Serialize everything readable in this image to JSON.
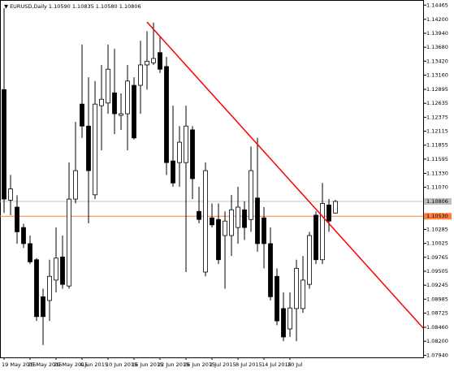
{
  "chart_data": {
    "type": "candlestick",
    "title": "▼ EURUSD,Daily 1.10590 1.10835 1.10580 1.10806",
    "categories": [
      "19 May 2015",
      null,
      null,
      null,
      "25 May 2015",
      null,
      null,
      null,
      "29 May 2015",
      null,
      null,
      null,
      "4 Jun 2015",
      null,
      null,
      null,
      "10 Jun 2015",
      null,
      null,
      null,
      "16 Jun 2015",
      null,
      null,
      null,
      "22 Jun 2015",
      null,
      null,
      null,
      "26 Jun 2015",
      null,
      null,
      null,
      "2 Jul 2015",
      null,
      null,
      null,
      "8 Jul 2015",
      null,
      null,
      null,
      "14 Jul 2015",
      null,
      null,
      null,
      "20 Jul",
      null,
      null,
      null,
      null,
      null,
      null,
      null
    ],
    "open": [
      1.1289,
      1.1083,
      1.107,
      1.1032,
      1.1002,
      1.0972,
      1.0903,
      1.0896,
      1.0934,
      1.0977,
      1.0923,
      1.1085,
      1.1262,
      1.1221,
      1.1093,
      1.1259,
      1.1264,
      1.1283,
      1.1241,
      1.1244,
      1.1297,
      1.1297,
      1.1335,
      1.1339,
      1.1358,
      1.1332,
      1.1156,
      1.1153,
      1.1153,
      1.1214,
      1.1062,
      1.0949,
      1.105,
      1.1047,
      1.1017,
      1.1017,
      1.1032,
      1.1065,
      1.1047,
      1.1087,
      1.105,
      1.1002,
      1.0941,
      1.0881,
      1.0843,
      1.0881,
      1.0881,
      1.0926,
      1.1055,
      1.0972,
      1.1074,
      1.1059
    ],
    "high": [
      1.1441,
      1.113,
      1.1092,
      1.1039,
      1.1017,
      1.0975,
      1.0918,
      1.0972,
      1.1032,
      1.1017,
      1.1153,
      1.1229,
      1.1373,
      1.1312,
      1.1305,
      1.1335,
      1.1373,
      1.1365,
      1.1282,
      1.1335,
      1.1312,
      1.138,
      1.1398,
      1.1414,
      1.1388,
      1.135,
      1.1259,
      1.1221,
      1.1259,
      1.1221,
      1.1108,
      1.1153,
      1.1077,
      1.1077,
      1.1062,
      1.1093,
      1.1108,
      1.1081,
      1.1183,
      1.1199,
      1.107,
      1.1032,
      1.0956,
      1.0911,
      1.0911,
      1.0972,
      1.0979,
      1.1024,
      1.1062,
      1.1115,
      1.1085,
      1.10835
    ],
    "low": [
      1.1059,
      1.1055,
      1.1002,
      1.0994,
      1.0964,
      1.0858,
      1.0813,
      1.0858,
      1.0911,
      1.0918,
      1.0918,
      1.1077,
      1.1199,
      1.104,
      1.1085,
      1.1176,
      1.1244,
      1.1206,
      1.1214,
      1.1176,
      1.1196,
      1.1244,
      1.1289,
      1.1335,
      1.132,
      1.113,
      1.1108,
      1.1108,
      1.0949,
      1.1085,
      1.104,
      1.0941,
      1.1032,
      1.0964,
      1.0918,
      1.0979,
      1.1002,
      1.1009,
      1.1024,
      1.0987,
      1.0956,
      1.0896,
      1.085,
      1.082,
      1.0828,
      1.082,
      1.0873,
      1.0918,
      1.0964,
      1.0964,
      1.1024,
      1.1058
    ],
    "close": [
      1.1085,
      1.1104,
      1.1024,
      1.1002,
      1.0968,
      1.0866,
      1.0866,
      1.0941,
      1.0975,
      1.0926,
      1.1085,
      1.1138,
      1.1221,
      1.1138,
      1.1262,
      1.1271,
      1.1327,
      1.1244,
      1.1244,
      1.1305,
      1.1199,
      1.1335,
      1.1342,
      1.1347,
      1.1327,
      1.1153,
      1.1115,
      1.1191,
      1.1221,
      1.1123,
      1.1047,
      1.1138,
      1.1037,
      1.0972,
      1.1044,
      1.1065,
      1.107,
      1.1032,
      1.1138,
      1.1002,
      1.1002,
      1.0903,
      1.0858,
      1.0828,
      1.0882,
      1.0956,
      1.0934,
      1.1017,
      1.0972,
      1.1077,
      1.1044,
      1.10806
    ],
    "up_color": "#ffffff",
    "down_color": "#000000",
    "ylim": [
      1.079,
      1.1456
    ],
    "yticks": [
      {
        "value": 1.14465,
        "label": "1.14465"
      },
      {
        "value": 1.142,
        "label": "1.14200"
      },
      {
        "value": 1.1394,
        "label": "1.13940"
      },
      {
        "value": 1.1368,
        "label": "1.13680"
      },
      {
        "value": 1.1342,
        "label": "1.13420"
      },
      {
        "value": 1.1316,
        "label": "1.13160"
      },
      {
        "value": 1.12895,
        "label": "1.12895"
      },
      {
        "value": 1.12635,
        "label": "1.12635"
      },
      {
        "value": 1.12375,
        "label": "1.12375"
      },
      {
        "value": 1.12115,
        "label": "1.12115"
      },
      {
        "value": 1.11855,
        "label": "1.11855"
      },
      {
        "value": 1.11595,
        "label": "1.11595"
      },
      {
        "value": 1.1133,
        "label": "1.11330"
      },
      {
        "value": 1.1107,
        "label": "1.11070"
      },
      {
        "value": 1.10285,
        "label": "1.10285"
      },
      {
        "value": 1.10025,
        "label": "1.10025"
      },
      {
        "value": 1.09765,
        "label": "1.09765"
      },
      {
        "value": 1.09505,
        "label": "1.09505"
      },
      {
        "value": 1.09245,
        "label": "1.09245"
      },
      {
        "value": 1.08985,
        "label": "1.08985"
      },
      {
        "value": 1.08725,
        "label": "1.08725"
      },
      {
        "value": 1.0846,
        "label": "1.08460"
      },
      {
        "value": 1.082,
        "label": "1.08200"
      },
      {
        "value": 1.0794,
        "label": "1.07940"
      }
    ],
    "hline": {
      "value": 1.1053,
      "label": "1.10530",
      "color": "#ff7f3f"
    },
    "trend_line": {
      "x": [
        22,
        65.75
      ],
      "y": [
        1.1415,
        1.0828
      ],
      "color": "#ff0000"
    }
  }
}
